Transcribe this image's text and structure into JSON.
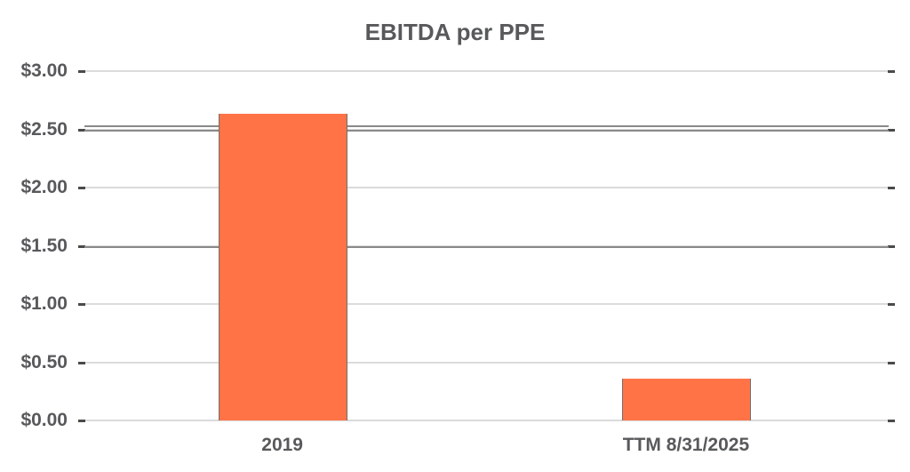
{
  "chart_data": {
    "type": "bar",
    "title": "EBITDA per PPE",
    "categories": [
      "2019",
      "TTM 8/31/2025"
    ],
    "values": [
      2.63,
      0.36
    ],
    "xlabel": "",
    "ylabel": "",
    "ylim": [
      0,
      3
    ],
    "grid": true,
    "legend": "none",
    "y_ticks": [
      {
        "label": "$3.00",
        "value": 3.0
      },
      {
        "label": "$2.50",
        "value": 2.5
      },
      {
        "label": "$2.00",
        "value": 2.0
      },
      {
        "label": "$1.50",
        "value": 1.5
      },
      {
        "label": "$1.00",
        "value": 1.0
      },
      {
        "label": "$0.50",
        "value": 0.5
      },
      {
        "label": "$0.00",
        "value": 0.0
      }
    ],
    "reference_lines": [
      {
        "value": 2.53
      },
      {
        "value": 2.49
      },
      {
        "value": 1.49
      }
    ],
    "colors": {
      "bar": "#FF7347",
      "bar_border": "#70706E",
      "text": "#58595B",
      "gridline": "#DBDBDB",
      "tick": "#4A4A4A",
      "reference_line": "#8A8A8A"
    }
  }
}
